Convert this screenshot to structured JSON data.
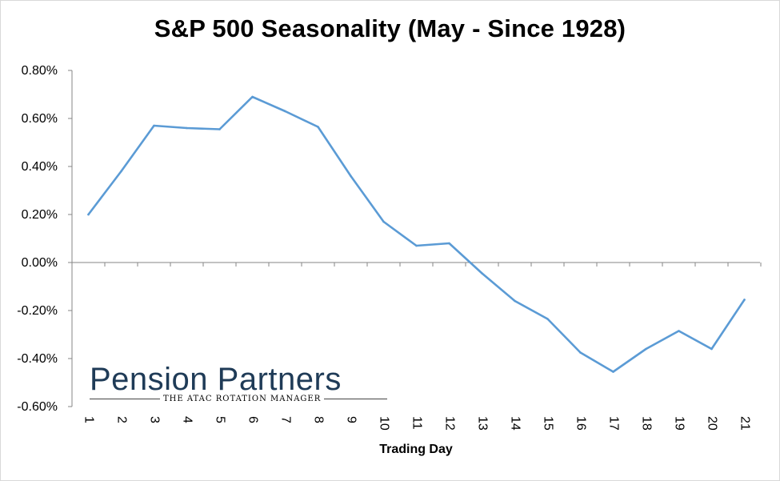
{
  "chart_data": {
    "type": "line",
    "title": "S&P 500 Seasonality (May - Since 1928)",
    "xlabel": "Trading Day",
    "ylabel": "",
    "x": [
      1,
      2,
      3,
      4,
      5,
      6,
      7,
      8,
      9,
      10,
      11,
      12,
      13,
      14,
      15,
      16,
      17,
      18,
      19,
      20,
      21
    ],
    "x_tick_labels": [
      "1",
      "2",
      "3",
      "4",
      "5",
      "6",
      "7",
      "8",
      "9",
      "10",
      "11",
      "12",
      "13",
      "14",
      "15",
      "16",
      "17",
      "18",
      "19",
      "20",
      "21"
    ],
    "ylim": [
      -0.6,
      0.8
    ],
    "y_ticks": [
      0.8,
      0.6,
      0.4,
      0.2,
      0.0,
      -0.2,
      -0.4,
      -0.6
    ],
    "y_tick_labels": [
      "0.80%",
      "0.60%",
      "0.40%",
      "0.20%",
      "0.00%",
      "-0.20%",
      "-0.40%",
      "-0.60%"
    ],
    "series": [
      {
        "values": [
          0.2,
          0.38,
          0.57,
          0.56,
          0.555,
          0.69,
          0.63,
          0.565,
          0.36,
          0.17,
          0.07,
          0.08,
          -0.045,
          -0.16,
          -0.235,
          -0.375,
          -0.455,
          -0.36,
          -0.285,
          -0.36,
          -0.155
        ],
        "color": "#5b9bd5"
      }
    ],
    "grid": false,
    "legend": "none"
  },
  "logo": {
    "name": "Pension Partners",
    "tagline": "THE ATAC ROTATION MANAGER"
  }
}
